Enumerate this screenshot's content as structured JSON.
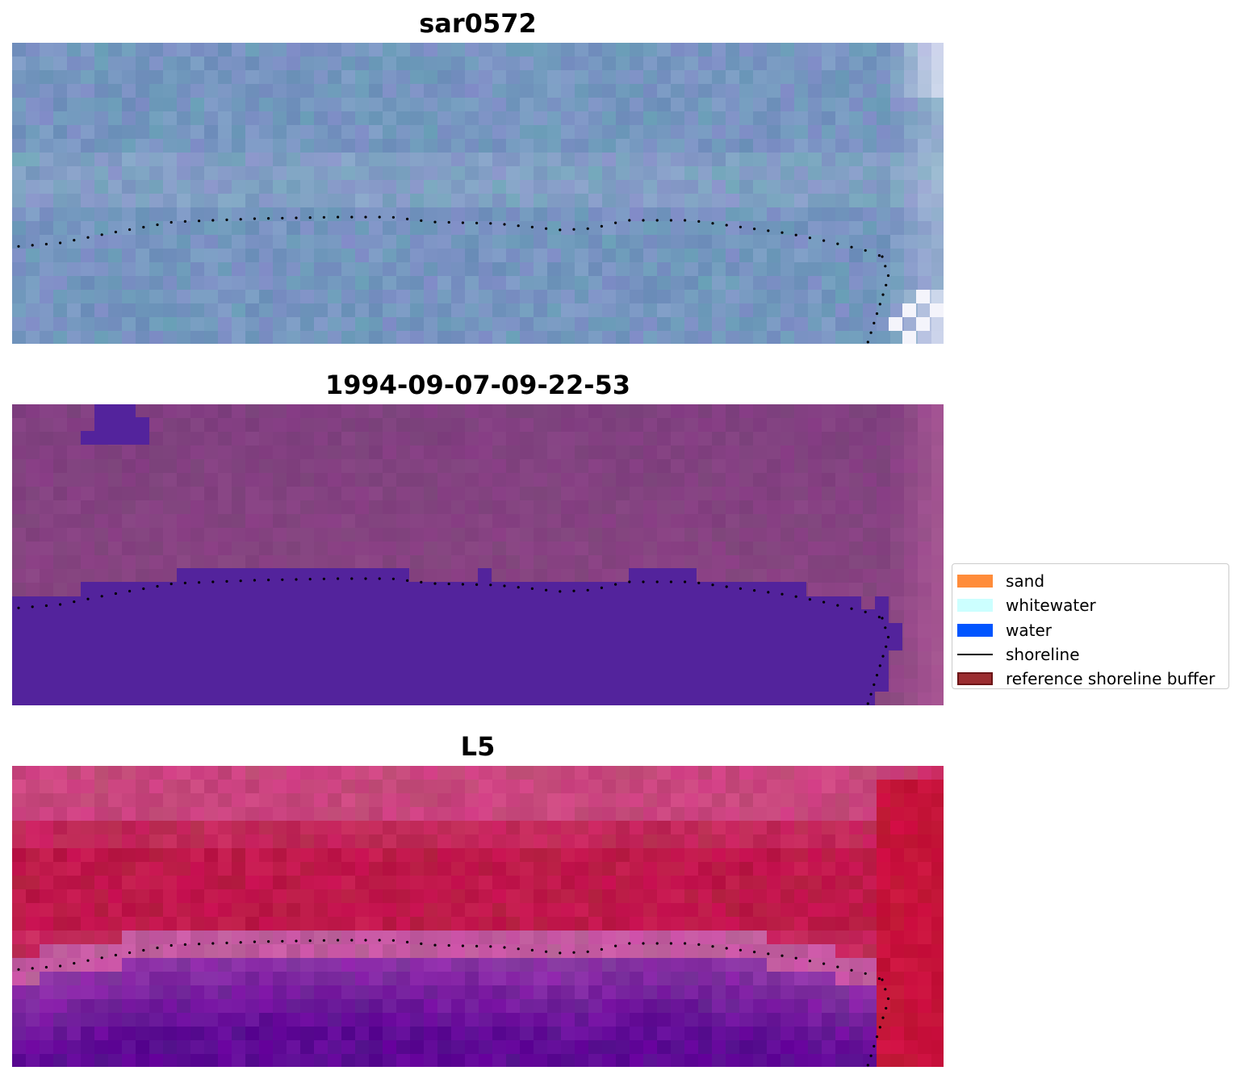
{
  "panels": [
    {
      "id": "sar",
      "title": "sar0572",
      "style": "sar"
    },
    {
      "id": "class",
      "title": "1994-09-07-09-22-53",
      "style": "class"
    },
    {
      "id": "index",
      "title": "L5",
      "style": "index"
    }
  ],
  "legend": {
    "items": [
      {
        "label": "sand",
        "color": "#ff8c3a",
        "kind": "patch"
      },
      {
        "label": "whitewater",
        "color": "#ccffff",
        "kind": "patch"
      },
      {
        "label": "water",
        "color": "#0055ff",
        "kind": "patch"
      },
      {
        "label": "shoreline",
        "color": "#000000",
        "kind": "line"
      },
      {
        "label": "reference shoreline buffer",
        "color": "#9b2d30",
        "kind": "patch-outlined"
      }
    ]
  },
  "colors": {
    "water_class": "#53239c",
    "shoreline_dots": "#000000"
  }
}
